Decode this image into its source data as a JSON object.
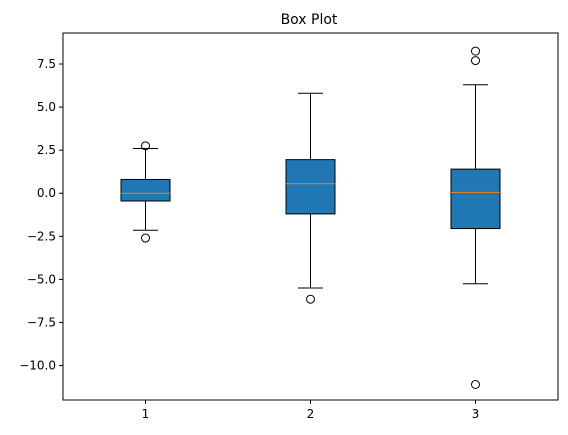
{
  "chart_data": {
    "type": "box",
    "title": "Box Plot",
    "xlabel": "",
    "ylabel": "",
    "categories": [
      "1",
      "2",
      "3"
    ],
    "ylim": [
      -12.0,
      9.3
    ],
    "yticks": [
      7.5,
      5.0,
      2.5,
      0.0,
      -2.5,
      -5.0,
      -7.5,
      -10.0
    ],
    "ytick_labels": [
      "7.5",
      "5.0",
      "2.5",
      "0.0",
      "−2.5",
      "−5.0",
      "−7.5",
      "−10.0"
    ],
    "grid": false,
    "boxes": [
      {
        "name": "1",
        "q1": -0.45,
        "median": 0.0,
        "q3": 0.8,
        "whisker_low": -2.15,
        "whisker_high": 2.6,
        "outliers": [
          2.75,
          -2.6
        ]
      },
      {
        "name": "2",
        "q1": -1.2,
        "median": 0.55,
        "q3": 1.95,
        "whisker_low": -5.5,
        "whisker_high": 5.8,
        "outliers": [
          -6.15
        ]
      },
      {
        "name": "3",
        "q1": -2.05,
        "median": 0.05,
        "q3": 1.4,
        "whisker_low": -5.25,
        "whisker_high": 6.3,
        "outliers": [
          8.25,
          7.7,
          -11.1
        ]
      }
    ],
    "colors": {
      "box_fill": "#1f77b4",
      "median": "#ff7f0e",
      "line": "#000000"
    }
  }
}
